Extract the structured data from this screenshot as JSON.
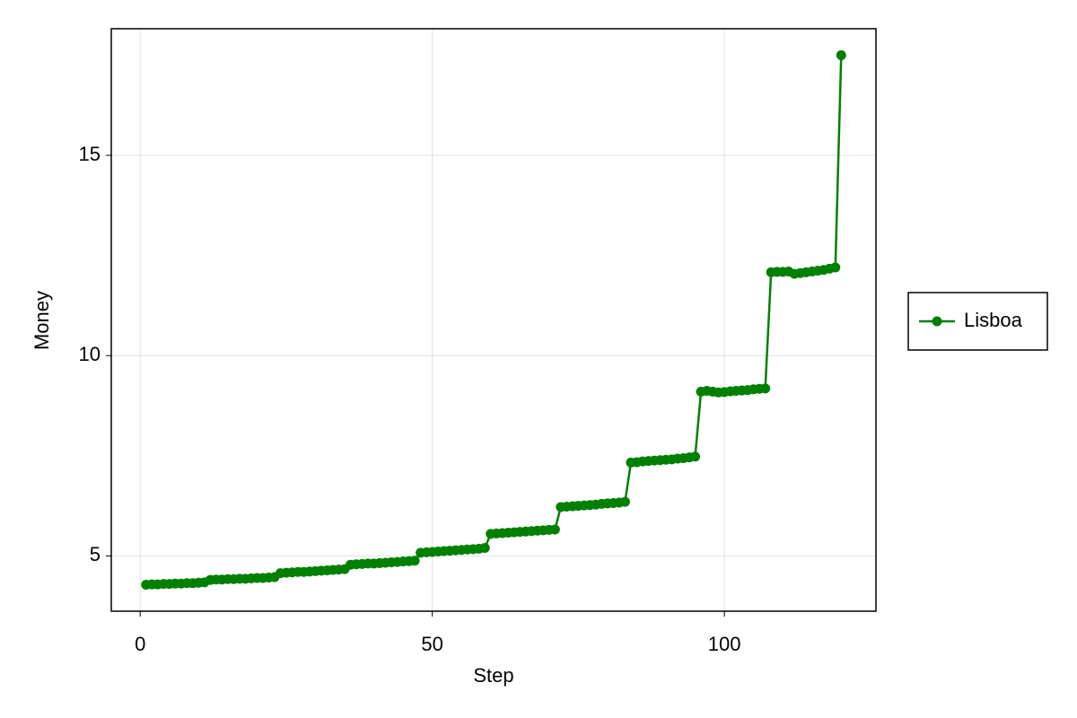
{
  "chart_data": {
    "type": "line",
    "x_label": "Step",
    "y_label": "Money",
    "x": [
      1,
      2,
      3,
      4,
      5,
      6,
      7,
      8,
      9,
      10,
      11,
      12,
      13,
      14,
      15,
      16,
      17,
      18,
      19,
      20,
      21,
      22,
      23,
      24,
      25,
      26,
      27,
      28,
      29,
      30,
      31,
      32,
      33,
      34,
      35,
      36,
      37,
      38,
      39,
      40,
      41,
      42,
      43,
      44,
      45,
      46,
      47,
      48,
      49,
      50,
      51,
      52,
      53,
      54,
      55,
      56,
      57,
      58,
      59,
      60,
      61,
      62,
      63,
      64,
      65,
      66,
      67,
      68,
      69,
      70,
      71,
      72,
      73,
      74,
      75,
      76,
      77,
      78,
      79,
      80,
      81,
      82,
      83,
      84,
      85,
      86,
      87,
      88,
      89,
      90,
      91,
      92,
      93,
      94,
      95,
      96,
      97,
      98,
      99,
      100,
      101,
      102,
      103,
      104,
      105,
      106,
      107,
      108,
      109,
      110,
      111,
      112,
      113,
      114,
      115,
      116,
      117,
      118,
      119,
      120
    ],
    "series": [
      {
        "name": "Lisboa",
        "color": "#008000",
        "values": [
          4.28,
          4.29,
          4.29,
          4.3,
          4.3,
          4.31,
          4.31,
          4.32,
          4.32,
          4.33,
          4.34,
          4.4,
          4.41,
          4.41,
          4.42,
          4.42,
          4.43,
          4.43,
          4.44,
          4.45,
          4.45,
          4.46,
          4.47,
          4.57,
          4.58,
          4.59,
          4.6,
          4.6,
          4.61,
          4.62,
          4.63,
          4.64,
          4.65,
          4.66,
          4.67,
          4.78,
          4.79,
          4.8,
          4.81,
          4.81,
          4.82,
          4.83,
          4.84,
          4.85,
          4.86,
          4.87,
          4.88,
          5.08,
          5.09,
          5.1,
          5.11,
          5.12,
          5.13,
          5.14,
          5.15,
          5.16,
          5.17,
          5.18,
          5.2,
          5.55,
          5.56,
          5.57,
          5.58,
          5.59,
          5.6,
          5.61,
          5.62,
          5.63,
          5.64,
          5.65,
          5.66,
          6.22,
          6.23,
          6.24,
          6.25,
          6.26,
          6.27,
          6.28,
          6.3,
          6.31,
          6.32,
          6.33,
          6.35,
          7.33,
          7.34,
          7.36,
          7.37,
          7.38,
          7.39,
          7.4,
          7.41,
          7.43,
          7.44,
          7.46,
          7.48,
          9.1,
          9.12,
          9.1,
          9.08,
          9.09,
          9.11,
          9.12,
          9.13,
          9.14,
          9.16,
          9.17,
          9.18,
          12.08,
          12.09,
          12.09,
          12.1,
          12.04,
          12.06,
          12.08,
          12.1,
          12.12,
          12.14,
          12.17,
          12.2,
          17.5
        ]
      }
    ],
    "xlim": [
      -4.95,
      125.95
    ],
    "ylim": [
      3.62,
      18.16
    ],
    "xticks": [
      0,
      50,
      100
    ],
    "yticks": [
      5,
      10,
      15
    ],
    "grid": true,
    "legend": "right"
  }
}
